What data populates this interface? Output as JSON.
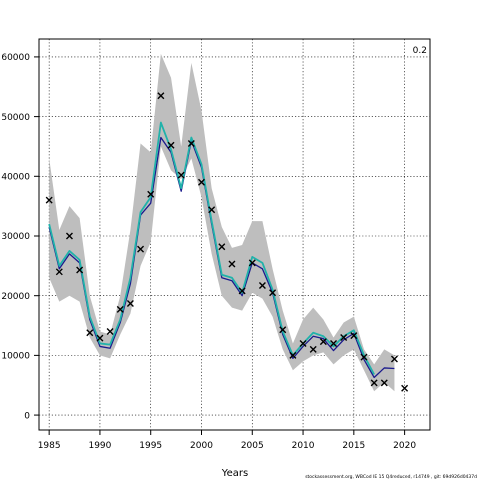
{
  "chart_data": {
    "type": "line",
    "title": "",
    "xlabel": "Years",
    "ylabel": "",
    "corner_label": "0.2",
    "footer": "stockassessment.org, WBCod IE 15 Q4reduced, r14749 , git: 69d926d0437d",
    "xlim": [
      1984,
      2022.5
    ],
    "ylim": [
      -2500,
      63000
    ],
    "x_ticks": [
      1985,
      1990,
      1995,
      2000,
      2005,
      2010,
      2015,
      2020
    ],
    "x_tick_labels": [
      "1985",
      "1990",
      "1995",
      "2000",
      "2005",
      "2010",
      "2015",
      "2020"
    ],
    "y_ticks": [
      0,
      10000,
      20000,
      30000,
      40000,
      50000,
      60000
    ],
    "y_tick_labels": [
      "0",
      "10000",
      "20000",
      "30000",
      "40000",
      "50000",
      "60000"
    ],
    "grid": true,
    "years": [
      1985,
      1986,
      1987,
      1988,
      1989,
      1990,
      1991,
      1992,
      1993,
      1994,
      1995,
      1996,
      1997,
      1998,
      1999,
      2000,
      2001,
      2002,
      2003,
      2004,
      2005,
      2006,
      2007,
      2008,
      2009,
      2010,
      2011,
      2012,
      2013,
      2014,
      2015,
      2016,
      2017,
      2018,
      2019
    ],
    "series": [
      {
        "kind": "band",
        "color": "#bebebe",
        "lower": [
          23000,
          19000,
          20000,
          19000,
          13000,
          10000,
          9500,
          13500,
          17000,
          25000,
          29000,
          45000,
          41000,
          39500,
          43000,
          36500,
          27000,
          20000,
          18000,
          17500,
          20500,
          19500,
          16500,
          11000,
          7500,
          9000,
          10000,
          10500,
          8500,
          10000,
          11000,
          7500,
          4000,
          5500,
          4000
        ],
        "upper": [
          43000,
          31000,
          35000,
          33000,
          20000,
          14000,
          13500,
          20000,
          31000,
          45500,
          44000,
          60500,
          56500,
          45000,
          59000,
          51000,
          38000,
          31500,
          28000,
          28500,
          32500,
          32500,
          24500,
          17500,
          12000,
          16000,
          18000,
          16000,
          13000,
          15500,
          16500,
          11000,
          8500,
          11000,
          10000
        ]
      },
      {
        "kind": "line",
        "color": "#1a1a8c",
        "width": 1.3,
        "values": [
          31500,
          24500,
          27000,
          25500,
          16000,
          11500,
          11200,
          15500,
          22000,
          33500,
          35500,
          46500,
          44000,
          37500,
          46000,
          41500,
          32000,
          23000,
          22500,
          20000,
          25500,
          24500,
          20500,
          13500,
          9500,
          11500,
          13200,
          12800,
          10800,
          12600,
          13700,
          9300,
          6300,
          7900,
          7800
        ]
      },
      {
        "kind": "line",
        "color": "#20b2aa",
        "width": 1.8,
        "values": [
          32000,
          25000,
          27500,
          26000,
          16500,
          12000,
          11800,
          16000,
          23000,
          34000,
          36500,
          49000,
          44500,
          38000,
          46500,
          42000,
          32500,
          23500,
          23000,
          20500,
          26500,
          25500,
          21000,
          14000,
          10000,
          12000,
          13800,
          13200,
          11500,
          13200,
          14200,
          10000,
          6800
        ]
      },
      {
        "kind": "points",
        "marker": "x",
        "color": "#000000",
        "x": [
          1985,
          1986,
          1987,
          1988,
          1989,
          1990,
          1991,
          1992,
          1993,
          1994,
          1995,
          1996,
          1997,
          1998,
          1999,
          2000,
          2001,
          2002,
          2003,
          2004,
          2005,
          2006,
          2007,
          2008,
          2009,
          2010,
          2011,
          2012,
          2013,
          2014,
          2015,
          2016,
          2017,
          2018,
          2019,
          2020
        ],
        "values": [
          36000,
          24000,
          30000,
          24300,
          13800,
          12900,
          14000,
          17700,
          18700,
          27800,
          37000,
          53500,
          45200,
          40200,
          45500,
          39000,
          34400,
          28200,
          25300,
          20800,
          25500,
          21700,
          20500,
          14300,
          10000,
          12000,
          11000,
          12300,
          12000,
          13000,
          13300,
          9700,
          5400,
          5400,
          9400,
          4500
        ]
      }
    ]
  }
}
